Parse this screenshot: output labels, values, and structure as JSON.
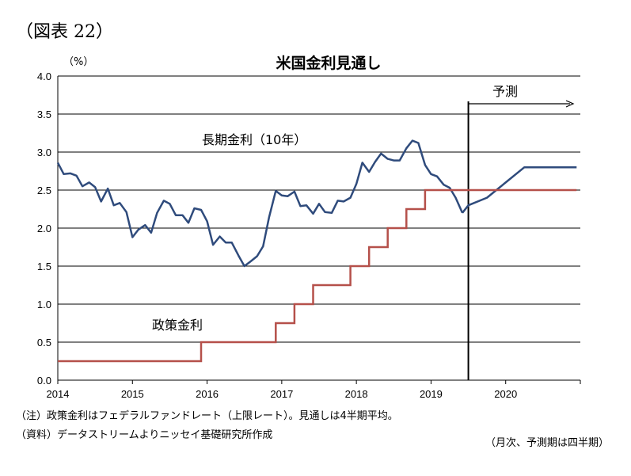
{
  "figure_label": "（図表 22）",
  "notes": {
    "line1": "（注）政策金利はフェデラルファンドレート（上限レート）。見通しは4半期平均。",
    "line2": "（資料）データストリームよりニッセイ基礎研究所作成",
    "line3": "（月次、予測期は四半期）"
  },
  "colors": {
    "long_rate": "#2F4B7C",
    "policy_rate": "#B5504A",
    "grid": "#000000"
  },
  "chart_data": {
    "type": "line",
    "title": "米国金利見通し",
    "ylabel": "（%）",
    "xlabel": "",
    "ylim": [
      0,
      4.0
    ],
    "xlim": [
      2014,
      2021
    ],
    "yticks": [
      "0.0",
      "0.5",
      "1.0",
      "1.5",
      "2.0",
      "2.5",
      "3.0",
      "3.5",
      "4.0"
    ],
    "xticks": [
      "2014",
      "2015",
      "2016",
      "2017",
      "2018",
      "2019",
      "2020"
    ],
    "forecast_start": 2019.5,
    "forecast_label": "予測",
    "series": [
      {
        "name": "長期金利（10年）",
        "points": [
          [
            2014.0,
            2.86
          ],
          [
            2014.08,
            2.71
          ],
          [
            2014.17,
            2.72
          ],
          [
            2014.25,
            2.69
          ],
          [
            2014.33,
            2.55
          ],
          [
            2014.42,
            2.6
          ],
          [
            2014.5,
            2.54
          ],
          [
            2014.58,
            2.35
          ],
          [
            2014.67,
            2.52
          ],
          [
            2014.75,
            2.3
          ],
          [
            2014.83,
            2.33
          ],
          [
            2014.92,
            2.21
          ],
          [
            2015.0,
            1.88
          ],
          [
            2015.08,
            1.98
          ],
          [
            2015.17,
            2.04
          ],
          [
            2015.25,
            1.94
          ],
          [
            2015.33,
            2.2
          ],
          [
            2015.42,
            2.36
          ],
          [
            2015.5,
            2.32
          ],
          [
            2015.58,
            2.17
          ],
          [
            2015.67,
            2.17
          ],
          [
            2015.75,
            2.07
          ],
          [
            2015.83,
            2.26
          ],
          [
            2015.92,
            2.24
          ],
          [
            2016.0,
            2.09
          ],
          [
            2016.08,
            1.78
          ],
          [
            2016.17,
            1.89
          ],
          [
            2016.25,
            1.81
          ],
          [
            2016.33,
            1.81
          ],
          [
            2016.42,
            1.64
          ],
          [
            2016.5,
            1.5
          ],
          [
            2016.58,
            1.56
          ],
          [
            2016.67,
            1.63
          ],
          [
            2016.75,
            1.76
          ],
          [
            2016.83,
            2.14
          ],
          [
            2016.92,
            2.49
          ],
          [
            2017.0,
            2.43
          ],
          [
            2017.08,
            2.42
          ],
          [
            2017.17,
            2.48
          ],
          [
            2017.25,
            2.29
          ],
          [
            2017.33,
            2.3
          ],
          [
            2017.42,
            2.19
          ],
          [
            2017.5,
            2.32
          ],
          [
            2017.58,
            2.21
          ],
          [
            2017.67,
            2.2
          ],
          [
            2017.75,
            2.36
          ],
          [
            2017.83,
            2.35
          ],
          [
            2017.92,
            2.4
          ],
          [
            2018.0,
            2.58
          ],
          [
            2018.08,
            2.86
          ],
          [
            2018.17,
            2.74
          ],
          [
            2018.25,
            2.87
          ],
          [
            2018.33,
            2.98
          ],
          [
            2018.42,
            2.91
          ],
          [
            2018.5,
            2.89
          ],
          [
            2018.58,
            2.89
          ],
          [
            2018.67,
            3.05
          ],
          [
            2018.75,
            3.15
          ],
          [
            2018.83,
            3.12
          ],
          [
            2018.92,
            2.83
          ],
          [
            2019.0,
            2.71
          ],
          [
            2019.08,
            2.68
          ],
          [
            2019.17,
            2.57
          ],
          [
            2019.25,
            2.53
          ],
          [
            2019.33,
            2.4
          ],
          [
            2019.42,
            2.2
          ]
        ],
        "label": "長期金利（10年）"
      },
      {
        "name": "長期金利（10年）予測",
        "points": [
          [
            2019.5,
            2.3
          ],
          [
            2019.75,
            2.4
          ],
          [
            2020.0,
            2.6
          ],
          [
            2020.25,
            2.8
          ],
          [
            2020.5,
            2.8
          ],
          [
            2020.75,
            2.8
          ],
          [
            2020.95,
            2.8
          ]
        ]
      },
      {
        "name": "政策金利",
        "label": "政策金利",
        "step_points": [
          [
            2014.0,
            0.25
          ],
          [
            2015.92,
            0.5
          ],
          [
            2016.92,
            0.75
          ],
          [
            2017.17,
            1.0
          ],
          [
            2017.42,
            1.25
          ],
          [
            2017.92,
            1.5
          ],
          [
            2018.17,
            1.75
          ],
          [
            2018.42,
            2.0
          ],
          [
            2018.67,
            2.25
          ],
          [
            2018.92,
            2.5
          ],
          [
            2020.95,
            2.5
          ]
        ]
      }
    ],
    "grid": "horizontal",
    "legend": "inline"
  }
}
